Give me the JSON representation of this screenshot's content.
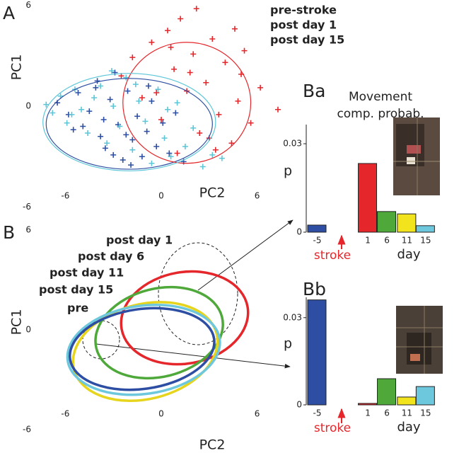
{
  "chart_data": [
    {
      "type": "scatter",
      "panel": "A",
      "xlabel": "PC2",
      "ylabel": "PC1",
      "xlim": [
        -8,
        6.5
      ],
      "ylim": [
        -6,
        6
      ],
      "xticks": [
        -6,
        0,
        6
      ],
      "yticks": [
        -6,
        0,
        6
      ],
      "series": [
        {
          "name": "pre-stroke",
          "color": "#2d4ea2",
          "x": [
            -6.5,
            -5.8,
            -5.2,
            -4.9,
            -4.5,
            -4.1,
            -3.8,
            -3.5,
            -3.2,
            -3.0,
            -2.7,
            -2.4,
            -2.1,
            -1.8,
            -1.5,
            -1.2,
            -0.9,
            -0.6,
            -0.3,
            0.1,
            0.5,
            0.9,
            1.4,
            -5.5,
            -4.0,
            -2.9,
            -1.9,
            -0.8,
            -3.6,
            -2.2
          ],
          "values": [
            0.2,
            -0.5,
            0.8,
            -1.2,
            -0.3,
            1.1,
            -1.8,
            -2.5,
            0.4,
            -2.9,
            -1.1,
            -3.2,
            0.9,
            -2.0,
            -0.6,
            -3.0,
            -1.5,
            0.3,
            -2.4,
            -1.0,
            -2.8,
            -0.4,
            -3.3,
            -1.4,
            1.5,
            2.0,
            -3.5,
            1.2,
            -0.8,
            -1.7
          ],
          "ellipse": {
            "cx": -2.0,
            "cy": -1.05,
            "rx": 5.2,
            "ry": 2.7
          }
        },
        {
          "name": "post day 1",
          "color": "#e5262b",
          "x": [
            -2.5,
            -1.8,
            -1.2,
            -0.6,
            0.0,
            0.4,
            0.8,
            1.2,
            1.6,
            2.0,
            2.4,
            2.8,
            3.2,
            3.6,
            4.0,
            4.4,
            4.8,
            5.2,
            5.6,
            6.2,
            7.3,
            1.0,
            2.2,
            3.0,
            -0.3,
            4.6,
            1.8,
            5.0,
            0.6,
            3.4
          ],
          "values": [
            1.8,
            2.9,
            0.5,
            3.8,
            -0.8,
            4.5,
            2.2,
            5.2,
            0.9,
            3.1,
            -1.6,
            1.4,
            4.0,
            -0.5,
            2.6,
            -2.2,
            0.3,
            3.3,
            -1.0,
            1.1,
            -0.2,
            -2.8,
            5.8,
            -1.9,
            0.8,
            4.6,
            2.0,
            1.9,
            3.5,
            -2.6
          ],
          "ellipse": {
            "cx": 1.6,
            "cy": 0.2,
            "rx": 4.0,
            "ry": 3.6
          }
        },
        {
          "name": "post day 15",
          "color": "#5cc6d8",
          "x": [
            -7.2,
            -6.8,
            -6.3,
            -5.9,
            -5.4,
            -5.0,
            -4.6,
            -4.2,
            -3.8,
            -3.4,
            -3.0,
            -2.6,
            -2.2,
            -1.8,
            -1.4,
            -1.0,
            -0.6,
            -0.2,
            0.2,
            0.6,
            1.0,
            1.5,
            2.0,
            2.6,
            3.2,
            3.8,
            -5.6,
            -3.1,
            -1.6,
            0.4
          ],
          "values": [
            0.1,
            -0.4,
            0.6,
            -1.0,
            1.0,
            -0.2,
            -1.6,
            0.5,
            1.2,
            -2.2,
            0.0,
            -1.2,
            1.7,
            -2.6,
            0.3,
            -0.9,
            -3.4,
            1.0,
            -1.9,
            -3.0,
            0.2,
            -2.4,
            -1.3,
            -3.6,
            -2.9,
            -3.1,
            -0.5,
            2.1,
            1.3,
            -0.2
          ],
          "ellipse": {
            "cx": -2.0,
            "cy": -0.95,
            "rx": 5.4,
            "ry": 2.9
          }
        }
      ]
    },
    {
      "type": "ellipse",
      "panel": "B",
      "xlabel": "PC2",
      "ylabel": "PC1",
      "xlim": [
        -8,
        6.5
      ],
      "ylim": [
        -6,
        6
      ],
      "xticks": [
        -6,
        0,
        6
      ],
      "yticks": [
        -6,
        0,
        6
      ],
      "series": [
        {
          "name": "post day 1",
          "color": "#e5262b",
          "cx": 1.46,
          "cy": 0.72,
          "rx": 4.0,
          "ry": 2.75,
          "angle": -10
        },
        {
          "name": "post day 6",
          "color": "#4ea83a",
          "cx": -0.13,
          "cy": -0.17,
          "rx": 4.05,
          "ry": 2.65,
          "angle": -14
        },
        {
          "name": "post day 11",
          "color": "#e6d51c",
          "cx": -1.0,
          "cy": -1.3,
          "rx": 4.6,
          "ry": 2.85,
          "angle": -14
        },
        {
          "name": "post day 15",
          "color": "#6ec8dd",
          "cx": -1.1,
          "cy": -1.2,
          "rx": 4.8,
          "ry": 2.65,
          "angle": -8
        },
        {
          "name": "pre",
          "color": "#2d4ea2",
          "cx": -1.2,
          "cy": -1.15,
          "rx": 4.55,
          "ry": 2.4,
          "angle": -8
        }
      ]
    },
    {
      "type": "bar",
      "panel": "Ba",
      "title": [
        "Movement",
        "comp. probab."
      ],
      "ylabel": "p",
      "xlabel": "day",
      "annotation": "stroke",
      "categories": [
        "-5",
        "1",
        "6",
        "11",
        "15"
      ],
      "values": [
        0.0024,
        0.0233,
        0.007,
        0.0062,
        0.0022
      ],
      "colors": [
        "#2d4ea2",
        "#e5262b",
        "#4ea83a",
        "#f1e31c",
        "#6ec8dd"
      ],
      "ylim": [
        0,
        0.0365
      ],
      "yticks": [
        0,
        0.03
      ]
    },
    {
      "type": "bar",
      "panel": "Bb",
      "ylabel": "p",
      "xlabel": "day",
      "annotation": "stroke",
      "categories": [
        "-5",
        "1",
        "6",
        "11",
        "15"
      ],
      "values": [
        0.0361,
        0.0005,
        0.009,
        0.0027,
        0.0063
      ],
      "colors": [
        "#2d4ea2",
        "#e5262b",
        "#4ea83a",
        "#f1e31c",
        "#6ec8dd"
      ],
      "ylim": [
        0,
        0.037
      ],
      "yticks": [
        0,
        0.03
      ]
    }
  ]
}
